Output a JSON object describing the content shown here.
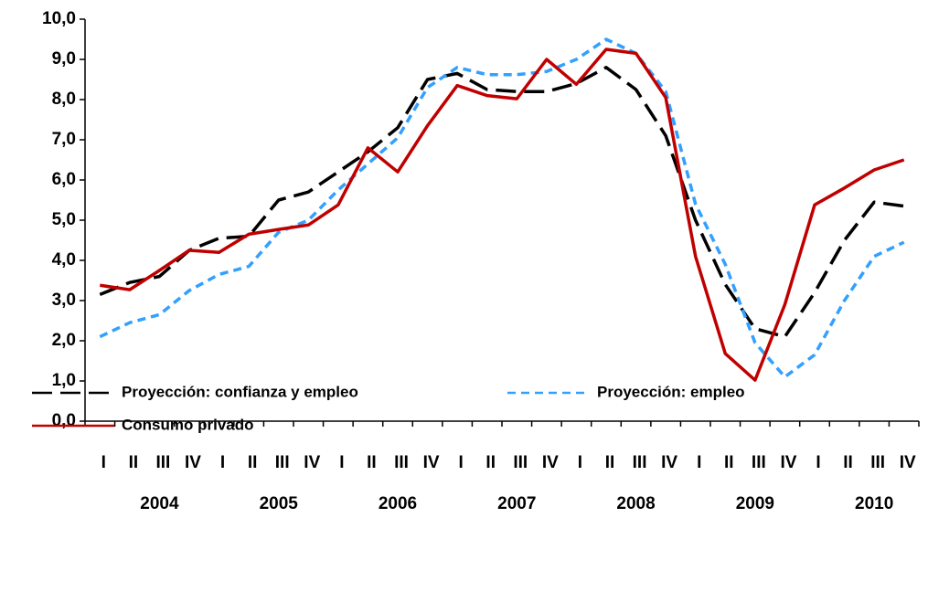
{
  "chart_data": {
    "type": "line",
    "categories": [
      "I",
      "II",
      "III",
      "IV",
      "I",
      "II",
      "III",
      "IV",
      "I",
      "II",
      "III",
      "IV",
      "I",
      "II",
      "III",
      "IV",
      "I",
      "II",
      "III",
      "IV",
      "I",
      "II",
      "III",
      "IV",
      "I",
      "II",
      "III",
      "IV"
    ],
    "year_labels": [
      "2004",
      "2005",
      "2006",
      "2007",
      "2008",
      "2009",
      "2010"
    ],
    "ylim": [
      0,
      10
    ],
    "yticks": [
      {
        "value": 0,
        "label": "0,0"
      },
      {
        "value": 1,
        "label": "1,0"
      },
      {
        "value": 2,
        "label": "2,0"
      },
      {
        "value": 3,
        "label": "3,0"
      },
      {
        "value": 4,
        "label": "4,0"
      },
      {
        "value": 5,
        "label": "5,0"
      },
      {
        "value": 6,
        "label": "6,0"
      },
      {
        "value": 7,
        "label": "7,0"
      },
      {
        "value": 8,
        "label": "8,0"
      },
      {
        "value": 9,
        "label": "9,0"
      },
      {
        "value": 10,
        "label": "10,0"
      }
    ],
    "series": [
      {
        "name": "Proyección: confianza y empleo",
        "color": "#000000",
        "dash": "long",
        "values": [
          3.15,
          3.45,
          3.6,
          4.25,
          4.55,
          4.6,
          5.5,
          5.7,
          6.2,
          6.7,
          7.3,
          8.5,
          8.65,
          8.25,
          8.2,
          8.2,
          8.4,
          8.8,
          8.25,
          7.1,
          5.0,
          3.4,
          2.3,
          2.1,
          3.2,
          4.5,
          5.45,
          5.35
        ]
      },
      {
        "name": "Proyección: empleo",
        "color": "#33a0ff",
        "dash": "short",
        "values": [
          2.1,
          2.45,
          2.65,
          3.25,
          3.65,
          3.85,
          4.7,
          5.0,
          5.75,
          6.4,
          7.05,
          8.3,
          8.8,
          8.62,
          8.62,
          8.7,
          9.0,
          9.5,
          9.15,
          8.2,
          5.4,
          3.9,
          1.95,
          1.1,
          1.65,
          3.0,
          4.1,
          4.45
        ]
      },
      {
        "name": "Consumo privado",
        "color": "#c00000",
        "dash": "solid",
        "values": [
          3.38,
          3.27,
          3.75,
          4.25,
          4.2,
          4.65,
          4.77,
          4.88,
          5.38,
          6.8,
          6.2,
          7.35,
          8.35,
          8.1,
          8.02,
          9.0,
          8.38,
          9.25,
          9.15,
          8.05,
          4.1,
          1.68,
          1.02,
          2.9,
          5.38,
          5.8,
          6.25,
          6.5
        ]
      }
    ]
  }
}
